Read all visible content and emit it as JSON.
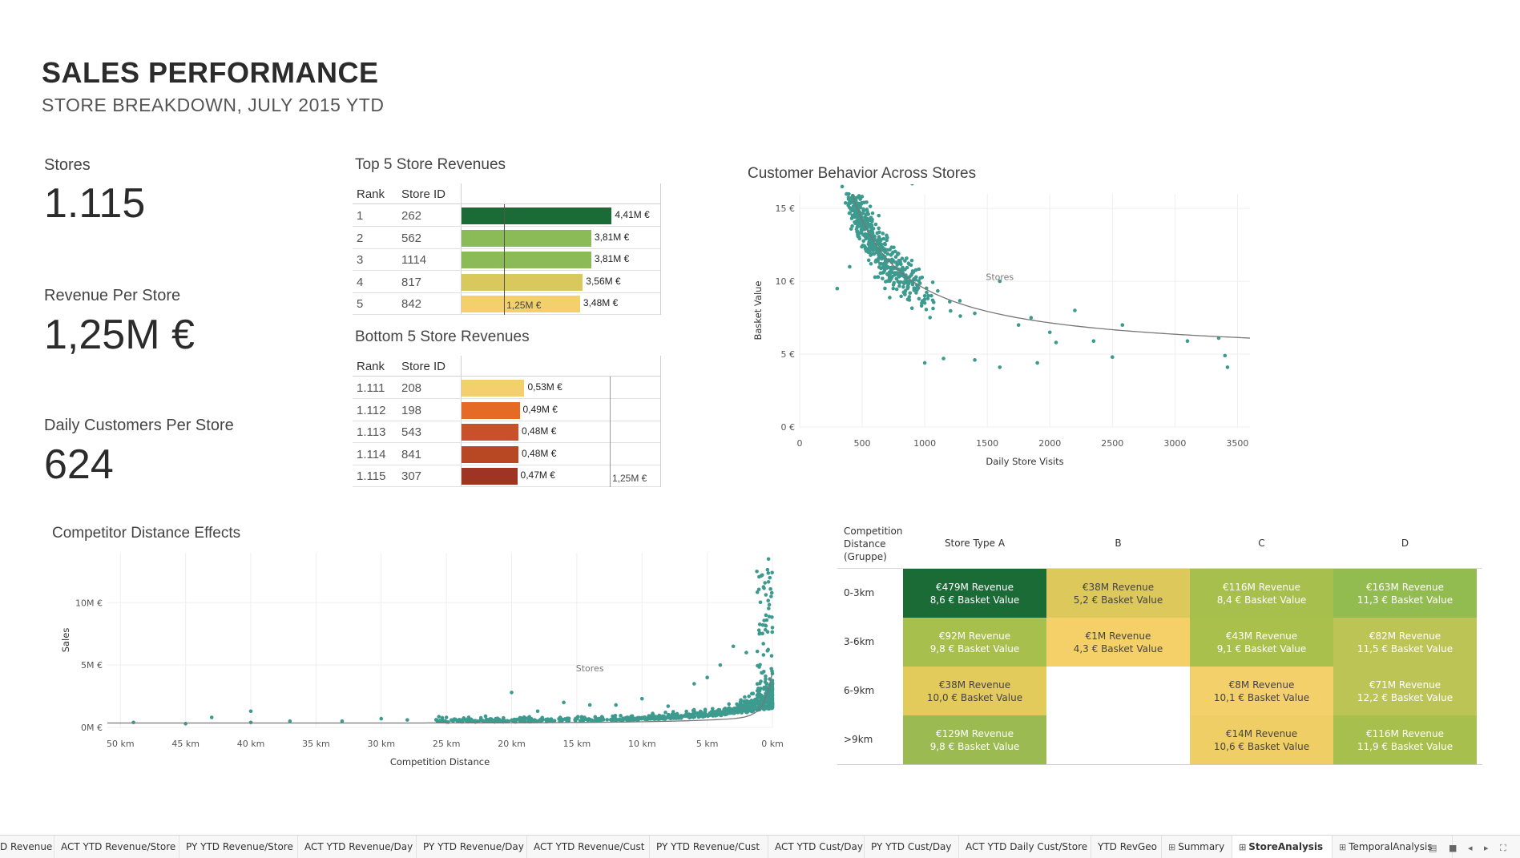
{
  "header": {
    "title": "SALES PERFORMANCE",
    "subtitle": "STORE BREAKDOWN, JULY 2015 YTD"
  },
  "kpis": [
    {
      "label": "Stores",
      "value": "1.115"
    },
    {
      "label": "Revenue Per Store",
      "value": "1,25M €"
    },
    {
      "label": "Daily Customers Per Store",
      "value": "624"
    }
  ],
  "top5": {
    "title": "Top 5 Store Revenues",
    "col_rank": "Rank",
    "col_store": "Store ID",
    "reference_label": "1,25M €",
    "reference_value": 1.25,
    "rows": [
      {
        "rank": "1",
        "store": "262",
        "value": 4.41,
        "label": "4,41M €",
        "color": "#1a6b35"
      },
      {
        "rank": "2",
        "store": "562",
        "value": 3.81,
        "label": "3,81M €",
        "color": "#8bbb57"
      },
      {
        "rank": "3",
        "store": "1114",
        "value": 3.81,
        "label": "3,81M €",
        "color": "#8bbb57"
      },
      {
        "rank": "4",
        "store": "817",
        "value": 3.56,
        "label": "3,56M €",
        "color": "#d9c95c"
      },
      {
        "rank": "5",
        "store": "842",
        "value": 3.48,
        "label": "3,48M €",
        "color": "#f3d06c"
      }
    ]
  },
  "bottom5": {
    "title": "Bottom 5 Store Revenues",
    "col_rank": "Rank",
    "col_store": "Store ID",
    "reference_label": "1,25M €",
    "reference_value": 1.25,
    "rows": [
      {
        "rank": "1.111",
        "store": "208",
        "value": 0.53,
        "label": "0,53M €",
        "color": "#f3d06c"
      },
      {
        "rank": "1.112",
        "store": "198",
        "value": 0.49,
        "label": "0,49M €",
        "color": "#e56a25"
      },
      {
        "rank": "1.113",
        "store": "543",
        "value": 0.48,
        "label": "0,48M €",
        "color": "#c8502a"
      },
      {
        "rank": "1.114",
        "store": "841",
        "value": 0.48,
        "label": "0,48M €",
        "color": "#b84724"
      },
      {
        "rank": "1.115",
        "store": "307",
        "value": 0.47,
        "label": "0,47M €",
        "color": "#9f3324"
      }
    ]
  },
  "chart_data": [
    {
      "type": "scatter",
      "title": "Customer Behavior Across Stores",
      "xlabel": "Daily Store Visits",
      "ylabel": "Basket Value",
      "annotation": "Stores",
      "xlim": [
        0,
        3600
      ],
      "ylim": [
        0,
        16
      ],
      "x_ticks": [
        "0",
        "500",
        "1000",
        "1500",
        "2000",
        "2500",
        "3000",
        "3500"
      ],
      "y_ticks": [
        "0 €",
        "5 €",
        "10 €",
        "15 €"
      ],
      "x_tick_values": [
        0,
        500,
        1000,
        1500,
        2000,
        2500,
        3000,
        3500
      ],
      "y_tick_values": [
        0,
        5,
        10,
        15
      ],
      "point_color": "#3d9a8f",
      "trend": "k / x + c",
      "points": [
        [
          340,
          16.5
        ],
        [
          450,
          16.8
        ],
        [
          900,
          16.7
        ],
        [
          1850,
          7.5
        ],
        [
          2350,
          5.9
        ],
        [
          2580,
          7
        ],
        [
          3400,
          4.9
        ],
        [
          3420,
          4.1
        ],
        [
          1000,
          4.4
        ],
        [
          1150,
          4.7
        ],
        [
          1400,
          4.6
        ],
        [
          1600,
          4.1
        ],
        [
          1900,
          4.4
        ],
        [
          2050,
          5.8
        ],
        [
          3100,
          5.9
        ],
        [
          3350,
          6.1
        ],
        [
          1600,
          10
        ],
        [
          1200,
          8.6
        ],
        [
          1400,
          7.8
        ],
        [
          1750,
          7
        ],
        [
          2000,
          6.5
        ],
        [
          2200,
          8
        ],
        [
          2500,
          4.8
        ],
        [
          1000,
          9
        ],
        [
          800,
          10.5
        ],
        [
          600,
          12.5
        ],
        [
          500,
          14
        ],
        [
          700,
          13
        ],
        [
          400,
          11
        ],
        [
          300,
          9.5
        ]
      ]
    },
    {
      "type": "scatter",
      "title": "Competitor Distance Effects",
      "xlabel": "Competition Distance",
      "ylabel": "Sales",
      "annotation": "Stores",
      "xlim": [
        51,
        0
      ],
      "ylim": [
        0,
        14
      ],
      "x_ticks": [
        "50 km",
        "45 km",
        "40 km",
        "35 km",
        "30 km",
        "25 km",
        "20 km",
        "15 km",
        "10 km",
        "5 km",
        "0 km"
      ],
      "y_ticks": [
        "0M €",
        "5M €",
        "10M €"
      ],
      "x_tick_values": [
        50,
        45,
        40,
        35,
        30,
        25,
        20,
        15,
        10,
        5,
        0
      ],
      "y_tick_values": [
        0,
        5,
        10
      ],
      "point_color": "#3d9a8f",
      "trend": "exponential",
      "points": [
        [
          49,
          0.4
        ],
        [
          45,
          0.3
        ],
        [
          43,
          0.8
        ],
        [
          40,
          1.3
        ],
        [
          40,
          0.4
        ],
        [
          37,
          0.5
        ],
        [
          33,
          0.5
        ],
        [
          30,
          0.7
        ],
        [
          28,
          0.6
        ],
        [
          25,
          0.8
        ],
        [
          22,
          0.9
        ],
        [
          20,
          2.8
        ],
        [
          18,
          1.3
        ],
        [
          16,
          2
        ],
        [
          14,
          1.8
        ],
        [
          12,
          1.8
        ],
        [
          10,
          2.3
        ],
        [
          8,
          1.7
        ],
        [
          6,
          3.5
        ],
        [
          5,
          4
        ],
        [
          4,
          5
        ],
        [
          3,
          6.5
        ],
        [
          2,
          6
        ],
        [
          1,
          7.5
        ],
        [
          0.5,
          9
        ],
        [
          0.3,
          13.5
        ],
        [
          0.2,
          12
        ],
        [
          0.1,
          10.5
        ],
        [
          0,
          8
        ]
      ]
    }
  ],
  "heatmap": {
    "corner_label": [
      "Competition",
      "Distance",
      "(Gruppe)"
    ],
    "columns": [
      "Store Type A",
      "B",
      "C",
      "D"
    ],
    "rows": [
      {
        "label": "0-3km",
        "cells": [
          {
            "rev": "€479M Revenue",
            "basket": "8,6 € Basket Value",
            "color": "#1a6b35",
            "dark": false
          },
          {
            "rev": "€38M Revenue",
            "basket": "5,2 € Basket Value",
            "color": "#ddc95b",
            "dark": true
          },
          {
            "rev": "€116M Revenue",
            "basket": "8,4 € Basket Value",
            "color": "#a6bf4d",
            "dark": false
          },
          {
            "rev": "€163M Revenue",
            "basket": "11,3 € Basket Value",
            "color": "#93bc50",
            "dark": false
          }
        ]
      },
      {
        "label": "3-6km",
        "cells": [
          {
            "rev": "€92M Revenue",
            "basket": "9,8 € Basket Value",
            "color": "#a6bf4d",
            "dark": false
          },
          {
            "rev": "€1M Revenue",
            "basket": "4,3 € Basket Value",
            "color": "#f5d068",
            "dark": true
          },
          {
            "rev": "€43M Revenue",
            "basket": "9,1 € Basket Value",
            "color": "#a9c04c",
            "dark": false
          },
          {
            "rev": "€82M Revenue",
            "basket": "11,5 € Basket Value",
            "color": "#bcc456",
            "dark": false
          }
        ]
      },
      {
        "label": "6-9km",
        "cells": [
          {
            "rev": "€38M Revenue",
            "basket": "10,0 € Basket Value",
            "color": "#e2ca5b",
            "dark": true
          },
          null,
          {
            "rev": "€8M Revenue",
            "basket": "10,1 € Basket Value",
            "color": "#f3d06a",
            "dark": true
          },
          {
            "rev": "€71M Revenue",
            "basket": "12,2 € Basket Value",
            "color": "#bcc456",
            "dark": false
          }
        ]
      },
      {
        "label": ">9km",
        "cells": [
          {
            "rev": "€129M Revenue",
            "basket": "9,8 € Basket Value",
            "color": "#9bbb52",
            "dark": false
          },
          null,
          {
            "rev": "€14M Revenue",
            "basket": "10,6 € Basket Value",
            "color": "#f0ce66",
            "dark": true
          },
          {
            "rev": "€116M Revenue",
            "basket": "11,9 € Basket Value",
            "color": "#a6bf4d",
            "dark": false
          }
        ]
      }
    ]
  },
  "tabs": [
    {
      "label": "D Revenue",
      "icon": "",
      "active": false
    },
    {
      "label": "ACT YTD Revenue/Store",
      "icon": "",
      "active": false
    },
    {
      "label": "PY YTD Revenue/Store",
      "icon": "",
      "active": false
    },
    {
      "label": "ACT YTD Revenue/Day",
      "icon": "",
      "active": false
    },
    {
      "label": "PY YTD Revenue/Day",
      "icon": "",
      "active": false
    },
    {
      "label": "ACT YTD Revenue/Cust",
      "icon": "",
      "active": false
    },
    {
      "label": "PY YTD Revenue/Cust",
      "icon": "",
      "active": false
    },
    {
      "label": "ACT YTD Cust/Day",
      "icon": "",
      "active": false
    },
    {
      "label": "PY YTD Cust/Day",
      "icon": "",
      "active": false
    },
    {
      "label": "ACT YTD Daily Cust/Store",
      "icon": "",
      "active": false
    },
    {
      "label": "YTD RevGeo",
      "icon": "",
      "active": false
    },
    {
      "label": "Summary",
      "icon": "dashboard-grid-icon",
      "active": false
    },
    {
      "label": "StoreAnalysis",
      "icon": "dashboard-grid-icon",
      "active": true
    },
    {
      "label": "TemporalAnalysis",
      "icon": "dashboard-grid-icon",
      "active": false
    }
  ],
  "controls": [
    "filmstrip-icon",
    "single-sheet-icon",
    "prev-sheet-icon",
    "next-sheet-icon",
    "fullscreen-icon"
  ]
}
